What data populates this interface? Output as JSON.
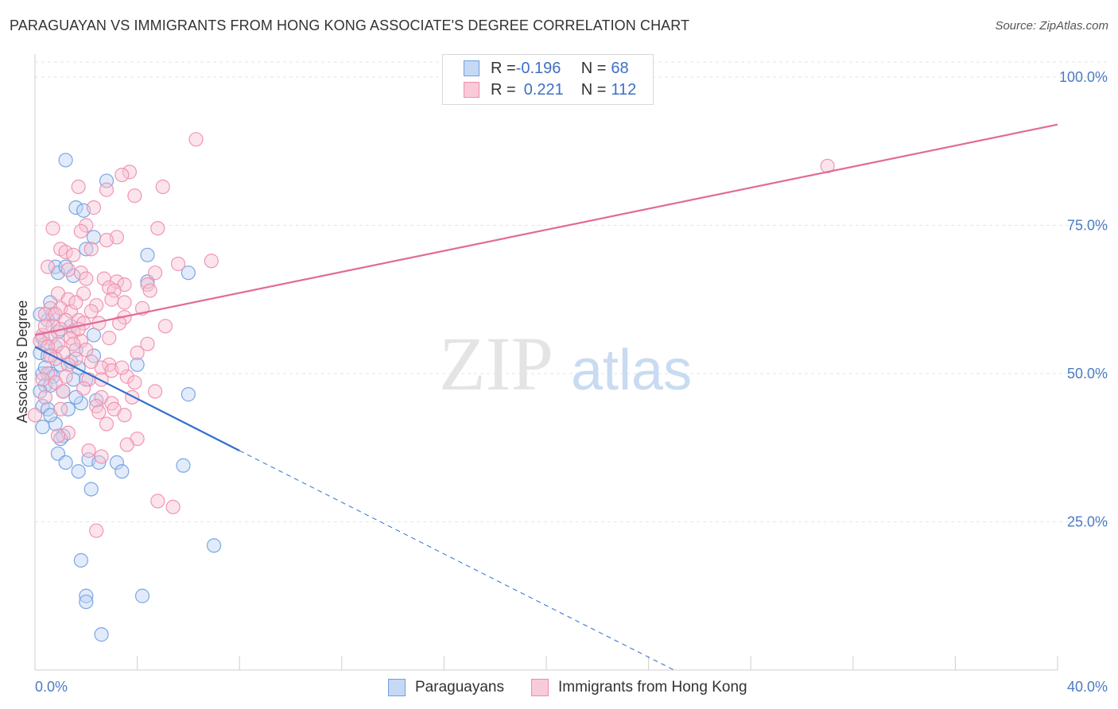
{
  "title": "PARAGUAYAN VS IMMIGRANTS FROM HONG KONG ASSOCIATE'S DEGREE CORRELATION CHART",
  "source": "Source: ZipAtlas.com",
  "watermark": {
    "zip": "ZIP",
    "atlas": "atlas"
  },
  "legend_top": {
    "rows": [
      {
        "r_label": "R = ",
        "r_value": "-0.196",
        "n_label": "N = ",
        "n_value": "68",
        "color": "#6f9fe0"
      },
      {
        "r_label": "R = ",
        "r_value": "0.221",
        "n_label": "N = ",
        "n_value": "112",
        "color": "#f08cac"
      }
    ]
  },
  "legend_bottom": {
    "items": [
      {
        "label": "Paraguayans",
        "color": "#6f9fe0"
      },
      {
        "label": "Immigrants from Hong Kong",
        "color": "#f08cac"
      }
    ]
  },
  "chart_data": {
    "type": "scatter",
    "title": "PARAGUAYAN VS IMMIGRANTS FROM HONG KONG ASSOCIATE'S DEGREE CORRELATION CHART",
    "xlabel": "",
    "ylabel": "Associate's Degree",
    "xlim": [
      0,
      40
    ],
    "ylim": [
      0,
      102
    ],
    "x_tick_labels": [
      "0.0%",
      "40.0%"
    ],
    "y_tick_labels": [
      "100.0%",
      "75.0%",
      "50.0%",
      "25.0%"
    ],
    "y_ticks": [
      100,
      75,
      50,
      25
    ],
    "grid": true,
    "series": [
      {
        "name": "Paraguayans",
        "color": "#6f9fe0",
        "line_color": "#2f6fce",
        "trend": {
          "x0": 0,
          "y0": 54.5,
          "x1": 8,
          "y1": 37,
          "dashed_to_x": 25,
          "dashed_to_y": 0
        },
        "points": [
          [
            1.2,
            86
          ],
          [
            2.8,
            82.5
          ],
          [
            1.6,
            78
          ],
          [
            1.9,
            77.5
          ],
          [
            2.3,
            73
          ],
          [
            2.0,
            71
          ],
          [
            4.4,
            70
          ],
          [
            6.0,
            67
          ],
          [
            0.8,
            68
          ],
          [
            0.9,
            67
          ],
          [
            1.2,
            68
          ],
          [
            1.5,
            66.5
          ],
          [
            4.4,
            65.5
          ],
          [
            0.6,
            62
          ],
          [
            0.7,
            60
          ],
          [
            0.5,
            59
          ],
          [
            1.4,
            58
          ],
          [
            2.3,
            56.5
          ],
          [
            0.3,
            56
          ],
          [
            0.4,
            55
          ],
          [
            0.8,
            54.5
          ],
          [
            1.6,
            54
          ],
          [
            0.2,
            53.5
          ],
          [
            0.5,
            53
          ],
          [
            2.3,
            53
          ],
          [
            1.0,
            51.5
          ],
          [
            1.7,
            51
          ],
          [
            4.0,
            51.5
          ],
          [
            0.3,
            50
          ],
          [
            0.6,
            50
          ],
          [
            0.7,
            49.5
          ],
          [
            1.5,
            49
          ],
          [
            0.4,
            48
          ],
          [
            0.6,
            48
          ],
          [
            6.0,
            46.5
          ],
          [
            2.4,
            45.5
          ],
          [
            1.8,
            45
          ],
          [
            0.3,
            44.5
          ],
          [
            0.5,
            44
          ],
          [
            1.3,
            44
          ],
          [
            0.8,
            41.5
          ],
          [
            1.1,
            39.5
          ],
          [
            1.0,
            39
          ],
          [
            0.9,
            36.5
          ],
          [
            1.2,
            35
          ],
          [
            2.1,
            35.5
          ],
          [
            2.5,
            35
          ],
          [
            3.2,
            35
          ],
          [
            5.8,
            34.5
          ],
          [
            1.7,
            33.5
          ],
          [
            3.4,
            33.5
          ],
          [
            2.2,
            30.5
          ],
          [
            7.0,
            21
          ],
          [
            1.8,
            18.5
          ],
          [
            2.0,
            12.5
          ],
          [
            4.2,
            12.5
          ],
          [
            2.0,
            11.5
          ],
          [
            2.6,
            6
          ],
          [
            0.2,
            60
          ],
          [
            0.4,
            51
          ],
          [
            0.9,
            57
          ],
          [
            1.4,
            52
          ],
          [
            0.2,
            47
          ],
          [
            2.0,
            49
          ],
          [
            0.6,
            43
          ],
          [
            1.1,
            47
          ],
          [
            0.3,
            41
          ],
          [
            1.6,
            46
          ]
        ]
      },
      {
        "name": "Immigrants from Hong Kong",
        "color": "#f08cac",
        "line_color": "#e26b95",
        "trend": {
          "x0": 0,
          "y0": 56.5,
          "x1": 40,
          "y1": 92
        },
        "points": [
          [
            6.3,
            89.5
          ],
          [
            31.0,
            85
          ],
          [
            3.7,
            84
          ],
          [
            3.4,
            83.5
          ],
          [
            1.7,
            81.5
          ],
          [
            5.0,
            81.5
          ],
          [
            2.8,
            81
          ],
          [
            3.9,
            80
          ],
          [
            2.3,
            78
          ],
          [
            0.7,
            74.5
          ],
          [
            2.0,
            75
          ],
          [
            4.8,
            74.5
          ],
          [
            1.8,
            74
          ],
          [
            3.2,
            73
          ],
          [
            2.8,
            72.5
          ],
          [
            1.0,
            71
          ],
          [
            2.2,
            71
          ],
          [
            1.2,
            70.5
          ],
          [
            1.5,
            70
          ],
          [
            6.9,
            69
          ],
          [
            5.6,
            68.5
          ],
          [
            0.5,
            68
          ],
          [
            1.3,
            67.5
          ],
          [
            4.7,
            67
          ],
          [
            1.8,
            67
          ],
          [
            2.7,
            66
          ],
          [
            3.2,
            65.5
          ],
          [
            3.5,
            65
          ],
          [
            4.4,
            65
          ],
          [
            2.9,
            64.5
          ],
          [
            3.1,
            64
          ],
          [
            4.5,
            64
          ],
          [
            0.9,
            63.5
          ],
          [
            1.9,
            63.5
          ],
          [
            1.3,
            62.5
          ],
          [
            3.0,
            62.5
          ],
          [
            3.5,
            62
          ],
          [
            2.4,
            61.5
          ],
          [
            0.6,
            61
          ],
          [
            1.0,
            61
          ],
          [
            1.4,
            60.5
          ],
          [
            0.4,
            60
          ],
          [
            0.8,
            60
          ],
          [
            2.2,
            60.5
          ],
          [
            3.5,
            59.5
          ],
          [
            1.2,
            59
          ],
          [
            1.7,
            59
          ],
          [
            1.9,
            58.5
          ],
          [
            2.5,
            58.5
          ],
          [
            5.1,
            58
          ],
          [
            0.7,
            58
          ],
          [
            1.0,
            57.5
          ],
          [
            1.5,
            57
          ],
          [
            0.3,
            56.5
          ],
          [
            0.6,
            56
          ],
          [
            1.4,
            56
          ],
          [
            1.8,
            55.5
          ],
          [
            0.2,
            55.5
          ],
          [
            0.9,
            55
          ],
          [
            4.4,
            55
          ],
          [
            0.5,
            54.5
          ],
          [
            2.0,
            54
          ],
          [
            1.1,
            53.5
          ],
          [
            4.0,
            53.5
          ],
          [
            1.6,
            52.5
          ],
          [
            0.8,
            52.5
          ],
          [
            1.3,
            51.5
          ],
          [
            2.9,
            51.5
          ],
          [
            2.6,
            51
          ],
          [
            3.0,
            50.5
          ],
          [
            0.5,
            50
          ],
          [
            1.2,
            49.5
          ],
          [
            3.6,
            49.5
          ],
          [
            2.1,
            49
          ],
          [
            2.6,
            49
          ],
          [
            0.8,
            48.5
          ],
          [
            3.9,
            48.5
          ],
          [
            1.9,
            47.5
          ],
          [
            4.7,
            47
          ],
          [
            0.4,
            46
          ],
          [
            2.6,
            46
          ],
          [
            3.0,
            45
          ],
          [
            2.4,
            44.5
          ],
          [
            1.0,
            44
          ],
          [
            3.1,
            44
          ],
          [
            2.5,
            43.5
          ],
          [
            0.0,
            43
          ],
          [
            3.5,
            43
          ],
          [
            2.8,
            41.5
          ],
          [
            1.3,
            40
          ],
          [
            0.9,
            39.5
          ],
          [
            4.0,
            39
          ],
          [
            3.6,
            38
          ],
          [
            2.1,
            37
          ],
          [
            2.6,
            36
          ],
          [
            4.8,
            28.5
          ],
          [
            5.4,
            27.5
          ],
          [
            2.4,
            23.5
          ],
          [
            1.7,
            57.5
          ],
          [
            2.2,
            52
          ],
          [
            0.3,
            49
          ],
          [
            1.5,
            55
          ],
          [
            4.2,
            61
          ],
          [
            3.3,
            58.5
          ],
          [
            0.6,
            53
          ],
          [
            2.9,
            56
          ],
          [
            1.1,
            47
          ],
          [
            3.8,
            46
          ],
          [
            0.4,
            58
          ],
          [
            2.0,
            66
          ],
          [
            1.6,
            62
          ],
          [
            3.4,
            51
          ]
        ]
      }
    ]
  }
}
